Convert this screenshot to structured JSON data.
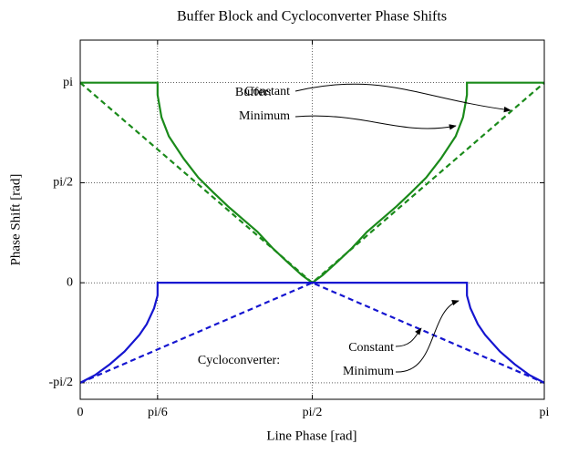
{
  "chart_data": {
    "type": "line",
    "title": "Buffer Block and Cycloconverter Phase Shifts",
    "x_label": "Line Phase [rad]",
    "y_label": "Phase Shift [rad]",
    "xlim": [
      0,
      3.1416
    ],
    "ylim": [
      -1.83,
      3.81
    ],
    "xticks": [
      0,
      {
        "value": 0.5236,
        "label": "pi/6"
      },
      {
        "value": 1.5708,
        "label": "pi/2"
      },
      {
        "value": 3.1416,
        "label": "pi"
      }
    ],
    "yticks": [
      {
        "value": -1.5708,
        "label": "-pi/2"
      },
      0,
      {
        "value": 1.5708,
        "label": "pi/2"
      },
      {
        "value": 3.1416,
        "label": "pi"
      }
    ],
    "grid": true,
    "series": [
      {
        "color": "#1a8a1a",
        "dash": false,
        "x": [
          0,
          0.5236,
          0.5236,
          0.55,
          0.6,
          0.7,
          0.8,
          0.9,
          1.0,
          1.1,
          1.2,
          1.3,
          1.4,
          1.5,
          1.5708,
          1.6416,
          1.7416,
          1.8416,
          1.9416,
          2.0416,
          2.1416,
          2.2416,
          2.3416,
          2.4416,
          2.5416,
          2.5916,
          2.618,
          2.618,
          3.1416
        ],
        "values": [
          3.1416,
          3.1416,
          2.95,
          2.6,
          2.3,
          1.95,
          1.65,
          1.42,
          1.2,
          1.0,
          0.8,
          0.55,
          0.33,
          0.12,
          0,
          0.12,
          0.33,
          0.55,
          0.8,
          1.0,
          1.2,
          1.42,
          1.65,
          1.95,
          2.3,
          2.6,
          2.95,
          3.1416,
          3.1416
        ]
      },
      {
        "color": "#1a8a1a",
        "dash": true,
        "x": [
          0,
          1.5708,
          3.1416
        ],
        "values": [
          3.1416,
          0,
          3.1416
        ]
      },
      {
        "color": "#1515d0",
        "dash": false,
        "x": [
          0,
          0.1,
          0.2,
          0.3,
          0.4,
          0.45,
          0.5,
          0.5236,
          0.5236,
          2.618,
          2.618,
          2.6416,
          2.6916,
          2.7416,
          2.8416,
          2.9416,
          3.0416,
          3.1416
        ],
        "values": [
          -1.5708,
          -1.45,
          -1.28,
          -1.08,
          -0.82,
          -0.65,
          -0.4,
          -0.2,
          0,
          0,
          -0.2,
          -0.4,
          -0.65,
          -0.82,
          -1.08,
          -1.28,
          -1.45,
          -1.5708
        ]
      },
      {
        "color": "#1515d0",
        "dash": true,
        "x": [
          0,
          1.5708,
          3.1416
        ],
        "values": [
          -1.5708,
          0,
          -1.5708
        ]
      }
    ],
    "annotations": [
      "Buffer:",
      "Constant",
      "Minimum",
      "Cycloconverter:",
      "Constant",
      "Minimum"
    ]
  }
}
